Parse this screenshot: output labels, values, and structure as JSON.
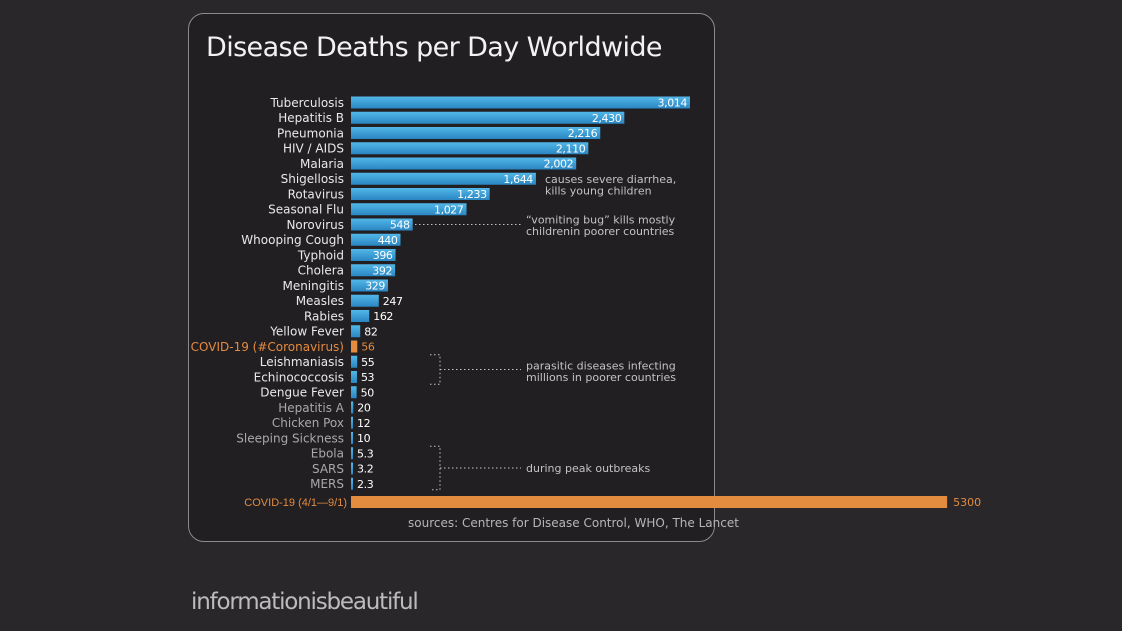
{
  "chart_data": {
    "type": "bar",
    "orientation": "horizontal",
    "title": "Disease Deaths per Day Worldwide",
    "categories": [
      "Tuberculosis",
      "Hepatitis B",
      "Pneumonia",
      "HIV / AIDS",
      "Malaria",
      "Shigellosis",
      "Rotavirus",
      "Seasonal Flu",
      "Norovirus",
      "Whooping Cough",
      "Typhoid",
      "Cholera",
      "Meningitis",
      "Measles",
      "Rabies",
      "Yellow Fever",
      "COVID-19 (#Coronavirus)",
      "Leishmaniasis",
      "Echinococcosis",
      "Dengue Fever",
      "Hepatitis A",
      "Chicken Pox",
      "Sleeping Sickness",
      "Ebola",
      "SARS",
      "MERS"
    ],
    "values": [
      3014,
      2430,
      2216,
      2110,
      2002,
      1644,
      1233,
      1027,
      548,
      440,
      396,
      392,
      329,
      247,
      162,
      82,
      56,
      55,
      53,
      50,
      20,
      12,
      10,
      5.3,
      3.2,
      2.3
    ],
    "value_labels": [
      "3,014",
      "2,430",
      "2,216",
      "2,110",
      "2,002",
      "1,644",
      "1,233",
      "1,027",
      "548",
      "440",
      "396",
      "392",
      "329",
      "247",
      "162",
      "82",
      "56",
      "55",
      "53",
      "50",
      "20",
      "12",
      "10",
      "5.3",
      "3.2",
      "2.3"
    ],
    "highlight": {
      "category": "COVID-19 (#Coronavirus)",
      "color": "#e38b3f"
    },
    "extra_bar": {
      "label": "COVID-19 (4/1—9/1)",
      "value": 5300,
      "value_label": "5300",
      "color": "#e38b3f"
    },
    "annotations": [
      {
        "category": "Shigellosis",
        "lines": [
          "causes severe diarrhea,",
          "kills young children"
        ]
      },
      {
        "category": "Norovirus",
        "lines": [
          "“vomiting bug” kills mostly",
          "childrenin poorer countries"
        ]
      },
      {
        "categories": [
          "Leishmaniasis",
          "Echinococcosis",
          "Dengue Fever"
        ],
        "lines": [
          "parasitic diseases infecting",
          "millions in poorer countries"
        ]
      },
      {
        "categories": [
          "Ebola",
          "SARS",
          "MERS"
        ],
        "lines": [
          "during peak outbreaks"
        ]
      }
    ],
    "xlabel": "",
    "ylabel": "",
    "grid": false,
    "legend": "none",
    "colors": {
      "bar": "#3d9fd6",
      "highlight": "#e38b3f",
      "label": "#e9e9e9",
      "faded_label": "#a9a8aa",
      "value": "#ffffff"
    }
  },
  "source": "sources: Centres for Disease Control, WHO, The Lancet",
  "brand": "informationisbeautiful"
}
